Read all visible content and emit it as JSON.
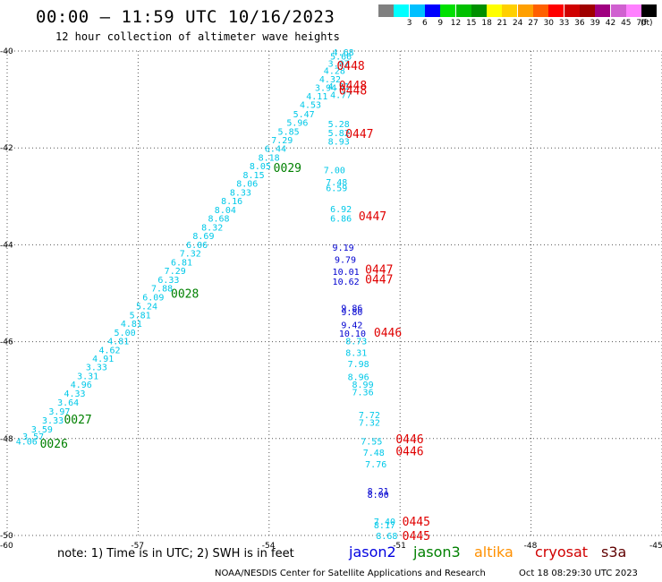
{
  "header": {
    "title": "00:00 – 11:59 UTC 10/16/2023",
    "subtitle": "12 hour collection of altimeter wave heights"
  },
  "color_scale": {
    "unit": "(ft)",
    "items": [
      {
        "label": "",
        "color": "#808080"
      },
      {
        "label": "3",
        "color": "#00ffff"
      },
      {
        "label": "6",
        "color": "#00c0ff"
      },
      {
        "label": "9",
        "color": "#0000ff"
      },
      {
        "label": "12",
        "color": "#00e000"
      },
      {
        "label": "15",
        "color": "#00c000"
      },
      {
        "label": "18",
        "color": "#009000"
      },
      {
        "label": "21",
        "color": "#ffff00"
      },
      {
        "label": "24",
        "color": "#ffd000"
      },
      {
        "label": "27",
        "color": "#ffa000"
      },
      {
        "label": "30",
        "color": "#ff6000"
      },
      {
        "label": "33",
        "color": "#ff0000"
      },
      {
        "label": "36",
        "color": "#d00000"
      },
      {
        "label": "39",
        "color": "#a00000"
      },
      {
        "label": "42",
        "color": "#a00080"
      },
      {
        "label": "45",
        "color": "#d060d0"
      },
      {
        "label": "70",
        "color": "#ff80ff"
      },
      {
        "label": "",
        "color": "#000000"
      }
    ]
  },
  "map": {
    "lat_range": [
      -50,
      -40
    ],
    "lon_range": [
      -60,
      -45
    ],
    "lat_labels": [
      "-40",
      "-42",
      "-44",
      "-46",
      "-48",
      "-50"
    ],
    "lon_labels": [
      "-60",
      "-57",
      "-54",
      "-51",
      "-48",
      "-45"
    ],
    "grid": "dotted",
    "colors": {
      "cyan": "#00c8e8",
      "blue": "#0000d0",
      "green": "#008000",
      "red": "#e00000"
    }
  },
  "track_labels": [
    {
      "text": "0448",
      "lon": -52.45,
      "lat": -40.3,
      "color": "red"
    },
    {
      "text": "0448",
      "lon": -52.4,
      "lat": -40.7,
      "color": "red"
    },
    {
      "text": "0448",
      "lon": -52.4,
      "lat": -40.8,
      "color": "red"
    },
    {
      "text": "0447",
      "lon": -52.25,
      "lat": -41.7,
      "color": "red"
    },
    {
      "text": "0029",
      "lon": -53.9,
      "lat": -42.4,
      "color": "green"
    },
    {
      "text": "0447",
      "lon": -51.95,
      "lat": -43.4,
      "color": "red"
    },
    {
      "text": "0447",
      "lon": -51.8,
      "lat": -44.5,
      "color": "red"
    },
    {
      "text": "0447",
      "lon": -51.8,
      "lat": -44.7,
      "color": "red"
    },
    {
      "text": "0028",
      "lon": -56.25,
      "lat": -45.0,
      "color": "green"
    },
    {
      "text": "0446",
      "lon": -51.6,
      "lat": -45.8,
      "color": "red"
    },
    {
      "text": "0027",
      "lon": -58.7,
      "lat": -47.6,
      "color": "green"
    },
    {
      "text": "0026",
      "lon": -59.25,
      "lat": -48.1,
      "color": "green"
    },
    {
      "text": "0446",
      "lon": -51.1,
      "lat": -48.0,
      "color": "red"
    },
    {
      "text": "0446",
      "lon": -51.1,
      "lat": -48.25,
      "color": "red"
    },
    {
      "text": "0445",
      "lon": -50.95,
      "lat": -49.7,
      "color": "red"
    },
    {
      "text": "0445",
      "lon": -50.95,
      "lat": -50.0,
      "color": "red"
    }
  ],
  "wave_heights": [
    {
      "text": "4.06",
      "lon": -59.8,
      "lat": -48.05,
      "color": "cyan"
    },
    {
      "text": "3.57",
      "lon": -59.65,
      "lat": -47.95,
      "color": "cyan"
    },
    {
      "text": "3.59",
      "lon": -59.45,
      "lat": -47.8,
      "color": "cyan"
    },
    {
      "text": "3.33",
      "lon": -59.2,
      "lat": -47.62,
      "color": "cyan"
    },
    {
      "text": "3.97",
      "lon": -59.05,
      "lat": -47.43,
      "color": "cyan"
    },
    {
      "text": "3.64",
      "lon": -58.85,
      "lat": -47.25,
      "color": "cyan"
    },
    {
      "text": "4.33",
      "lon": -58.7,
      "lat": -47.06,
      "color": "cyan"
    },
    {
      "text": "4.96",
      "lon": -58.55,
      "lat": -46.88,
      "color": "cyan"
    },
    {
      "text": "3.31",
      "lon": -58.4,
      "lat": -46.7,
      "color": "cyan"
    },
    {
      "text": "3.33",
      "lon": -58.2,
      "lat": -46.52,
      "color": "cyan"
    },
    {
      "text": "4.91",
      "lon": -58.05,
      "lat": -46.34,
      "color": "cyan"
    },
    {
      "text": "4.62",
      "lon": -57.9,
      "lat": -46.16,
      "color": "cyan"
    },
    {
      "text": "4.81",
      "lon": -57.7,
      "lat": -45.98,
      "color": "cyan"
    },
    {
      "text": "5.00",
      "lon": -57.55,
      "lat": -45.8,
      "color": "cyan"
    },
    {
      "text": "4.81",
      "lon": -57.4,
      "lat": -45.62,
      "color": "cyan"
    },
    {
      "text": "5.81",
      "lon": -57.2,
      "lat": -45.44,
      "color": "cyan"
    },
    {
      "text": "5.24",
      "lon": -57.05,
      "lat": -45.26,
      "color": "cyan"
    },
    {
      "text": "6.09",
      "lon": -56.9,
      "lat": -45.07,
      "color": "cyan"
    },
    {
      "text": "7.88",
      "lon": -56.7,
      "lat": -44.89,
      "color": "cyan"
    },
    {
      "text": "6.33",
      "lon": -56.55,
      "lat": -44.71,
      "color": "cyan"
    },
    {
      "text": "7.29",
      "lon": -56.4,
      "lat": -44.53,
      "color": "cyan"
    },
    {
      "text": "6.81",
      "lon": -56.25,
      "lat": -44.35,
      "color": "cyan"
    },
    {
      "text": "7.32",
      "lon": -56.05,
      "lat": -44.17,
      "color": "cyan"
    },
    {
      "text": "6.06",
      "lon": -55.9,
      "lat": -43.99,
      "color": "cyan"
    },
    {
      "text": "8.69",
      "lon": -55.75,
      "lat": -43.81,
      "color": "cyan"
    },
    {
      "text": "8.32",
      "lon": -55.55,
      "lat": -43.63,
      "color": "cyan"
    },
    {
      "text": "8.68",
      "lon": -55.4,
      "lat": -43.45,
      "color": "cyan"
    },
    {
      "text": "8.04",
      "lon": -55.25,
      "lat": -43.27,
      "color": "cyan"
    },
    {
      "text": "8.16",
      "lon": -55.1,
      "lat": -43.09,
      "color": "cyan"
    },
    {
      "text": "8.33",
      "lon": -54.9,
      "lat": -42.91,
      "color": "cyan"
    },
    {
      "text": "8.06",
      "lon": -54.75,
      "lat": -42.73,
      "color": "cyan"
    },
    {
      "text": "8.15",
      "lon": -54.6,
      "lat": -42.55,
      "color": "cyan"
    },
    {
      "text": "8.05",
      "lon": -54.45,
      "lat": -42.37,
      "color": "cyan"
    },
    {
      "text": "8.18",
      "lon": -54.25,
      "lat": -42.19,
      "color": "cyan"
    },
    {
      "text": "6.44",
      "lon": -54.1,
      "lat": -42.01,
      "color": "cyan"
    },
    {
      "text": "7.29",
      "lon": -53.95,
      "lat": -41.83,
      "color": "cyan"
    },
    {
      "text": "5.85",
      "lon": -53.8,
      "lat": -41.65,
      "color": "cyan"
    },
    {
      "text": "5.96",
      "lon": -53.6,
      "lat": -41.47,
      "color": "cyan"
    },
    {
      "text": "5.47",
      "lon": -53.45,
      "lat": -41.29,
      "color": "cyan"
    },
    {
      "text": "4.53",
      "lon": -53.3,
      "lat": -41.1,
      "color": "cyan"
    },
    {
      "text": "4.11",
      "lon": -53.15,
      "lat": -40.92,
      "color": "cyan"
    },
    {
      "text": "3.94",
      "lon": -52.95,
      "lat": -40.75,
      "color": "cyan"
    },
    {
      "text": "4.32",
      "lon": -52.85,
      "lat": -40.57,
      "color": "cyan"
    },
    {
      "text": "4.28",
      "lon": -52.75,
      "lat": -40.4,
      "color": "cyan"
    },
    {
      "text": "3.97",
      "lon": -52.65,
      "lat": -40.25,
      "color": "cyan"
    },
    {
      "text": "5.66",
      "lon": -52.6,
      "lat": -40.1,
      "color": "cyan"
    },
    {
      "text": "4.68",
      "lon": -52.55,
      "lat": -40.02,
      "color": "cyan"
    },
    {
      "text": "4.51",
      "lon": -52.65,
      "lat": -40.72,
      "color": "cyan"
    },
    {
      "text": "4.77",
      "lon": -52.6,
      "lat": -40.9,
      "color": "cyan"
    },
    {
      "text": "5.28",
      "lon": -52.65,
      "lat": -41.5,
      "color": "cyan"
    },
    {
      "text": "5.82",
      "lon": -52.65,
      "lat": -41.68,
      "color": "cyan"
    },
    {
      "text": "8.93",
      "lon": -52.65,
      "lat": -41.86,
      "color": "cyan"
    },
    {
      "text": "7.00",
      "lon": -52.75,
      "lat": -42.45,
      "color": "cyan"
    },
    {
      "text": "7.48",
      "lon": -52.7,
      "lat": -42.7,
      "color": "cyan"
    },
    {
      "text": "6.59",
      "lon": -52.7,
      "lat": -42.82,
      "color": "cyan"
    },
    {
      "text": "6.92",
      "lon": -52.6,
      "lat": -43.25,
      "color": "cyan"
    },
    {
      "text": "6.86",
      "lon": -52.6,
      "lat": -43.45,
      "color": "cyan"
    },
    {
      "text": "9.19",
      "lon": -52.55,
      "lat": -44.05,
      "color": "blue"
    },
    {
      "text": "9.79",
      "lon": -52.5,
      "lat": -44.3,
      "color": "blue"
    },
    {
      "text": "10.01",
      "lon": -52.55,
      "lat": -44.55,
      "color": "blue"
    },
    {
      "text": "10.62",
      "lon": -52.55,
      "lat": -44.75,
      "color": "blue"
    },
    {
      "text": "9.86",
      "lon": -52.35,
      "lat": -45.3,
      "color": "blue"
    },
    {
      "text": "9.80",
      "lon": -52.35,
      "lat": -45.38,
      "color": "blue"
    },
    {
      "text": "9.42",
      "lon": -52.35,
      "lat": -45.65,
      "color": "blue"
    },
    {
      "text": "10.10",
      "lon": -52.4,
      "lat": -45.82,
      "color": "blue"
    },
    {
      "text": "8.73",
      "lon": -52.25,
      "lat": -45.98,
      "color": "cyan"
    },
    {
      "text": "8.31",
      "lon": -52.25,
      "lat": -46.22,
      "color": "cyan"
    },
    {
      "text": "7.98",
      "lon": -52.2,
      "lat": -46.45,
      "color": "cyan"
    },
    {
      "text": "8.96",
      "lon": -52.2,
      "lat": -46.72,
      "color": "cyan"
    },
    {
      "text": "8.99",
      "lon": -52.1,
      "lat": -46.88,
      "color": "cyan"
    },
    {
      "text": "7.36",
      "lon": -52.1,
      "lat": -47.03,
      "color": "cyan"
    },
    {
      "text": "7.72",
      "lon": -51.95,
      "lat": -47.5,
      "color": "cyan"
    },
    {
      "text": "7.32",
      "lon": -51.95,
      "lat": -47.66,
      "color": "cyan"
    },
    {
      "text": "7.55",
      "lon": -51.9,
      "lat": -48.05,
      "color": "cyan"
    },
    {
      "text": "7.48",
      "lon": -51.85,
      "lat": -48.28,
      "color": "cyan"
    },
    {
      "text": "7.76",
      "lon": -51.8,
      "lat": -48.52,
      "color": "cyan"
    },
    {
      "text": "8.21",
      "lon": -51.75,
      "lat": -49.08,
      "color": "blue"
    },
    {
      "text": "8.00",
      "lon": -51.75,
      "lat": -49.15,
      "color": "blue"
    },
    {
      "text": "7.40",
      "lon": -51.6,
      "lat": -49.7,
      "color": "cyan"
    },
    {
      "text": "8.17",
      "lon": -51.6,
      "lat": -49.78,
      "color": "cyan"
    },
    {
      "text": "8.68",
      "lon": -51.55,
      "lat": -50.0,
      "color": "cyan"
    }
  ],
  "footer": {
    "note": "note: 1) Time is in UTC; 2) SWH is in feet",
    "legend": [
      {
        "label": "jason2",
        "color": "#0000e0"
      },
      {
        "label": "jason3",
        "color": "#008000"
      },
      {
        "label": "altika",
        "color": "#ff9000"
      },
      {
        "label": "cryosat",
        "color": "#d00000"
      },
      {
        "label": "s3a",
        "color": "#600000"
      }
    ],
    "credit": "NOAA/NESDIS Center for Satellite Applications and Research",
    "timestamp": "Oct 18 08:29:30 UTC 2023"
  }
}
